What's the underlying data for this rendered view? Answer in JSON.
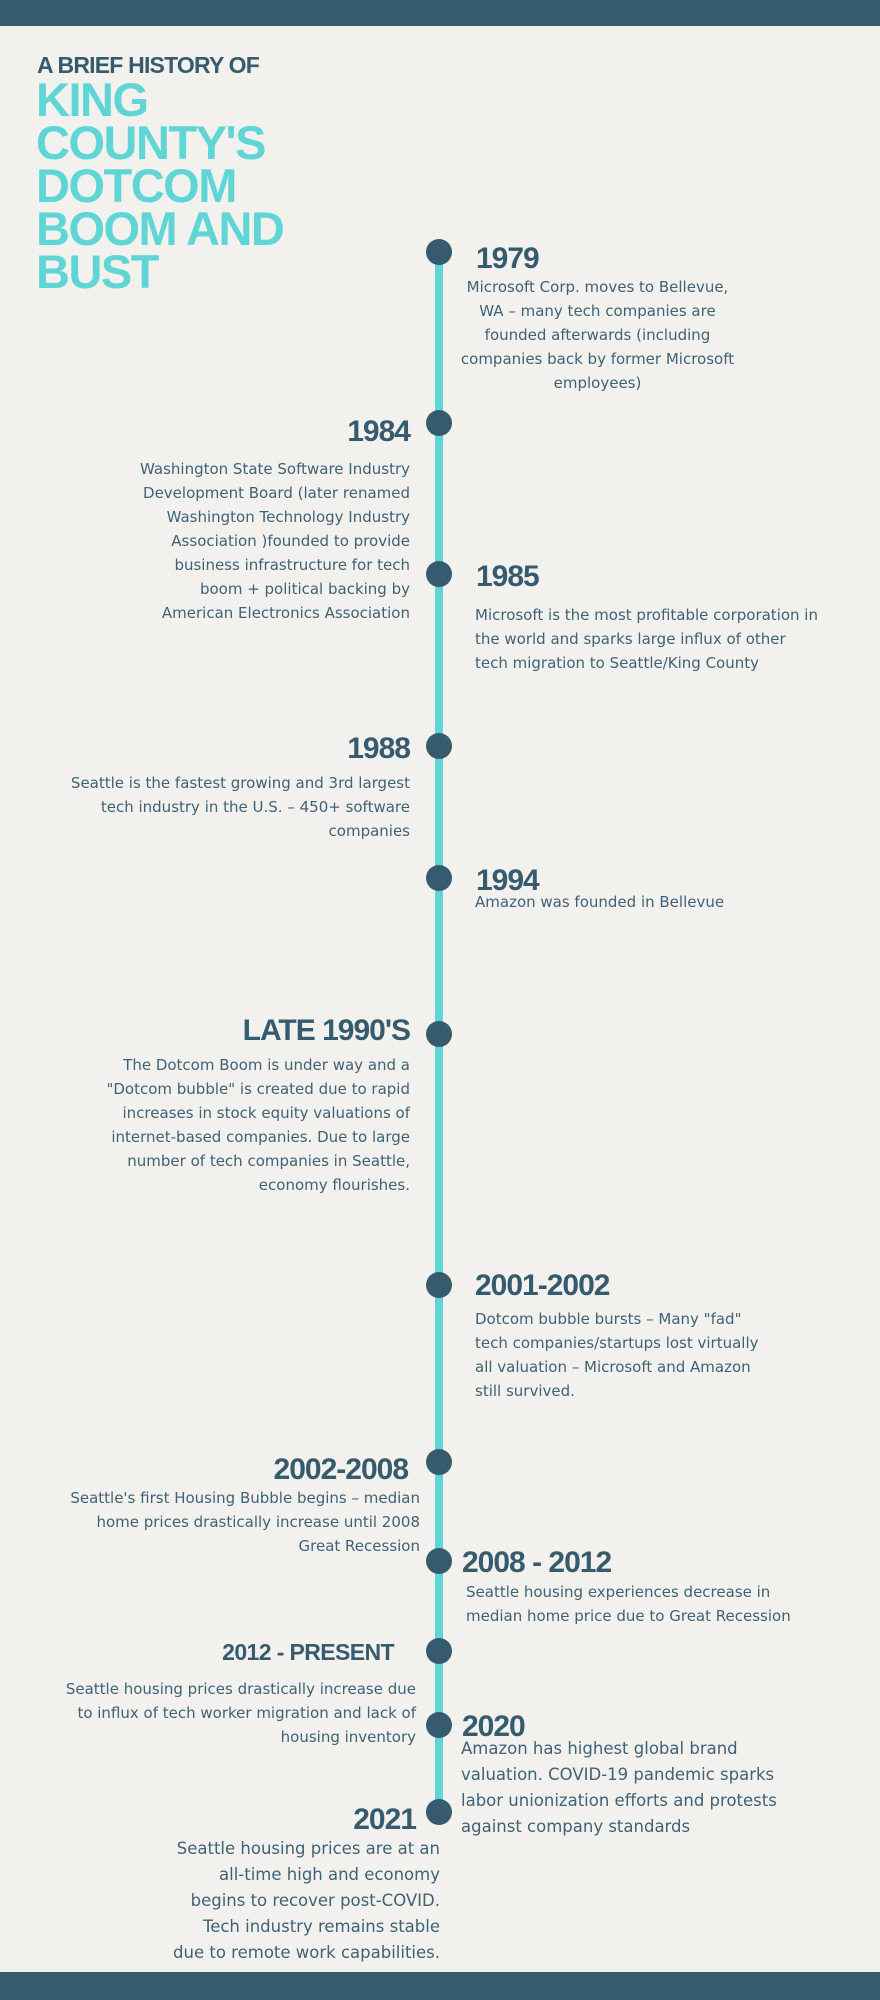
{
  "header": {
    "subtitle": "A BRIEF HISTORY OF",
    "title_lines": [
      "KING",
      "COUNTY'S",
      "DOTCOM",
      "BOOM AND",
      "BUST"
    ]
  },
  "events": [
    {
      "year": "1979",
      "text": "Microsoft Corp. moves to Bellevue, WA – many tech companies are founded afterwards (including companies back by former Microsoft employees)"
    },
    {
      "year": "1984",
      "text": "Washington State Software Industry Development Board (later renamed Washington Technology Industry Association )founded to provide business infrastructure for tech boom + political backing by American Electronics Association"
    },
    {
      "year": "1985",
      "text": "Microsoft is the most profitable corporation in the world and sparks large influx of other tech migration to Seattle/King County"
    },
    {
      "year": "1988",
      "text": "Seattle is the fastest growing and 3rd largest tech industry in the U.S. – 450+ software companies"
    },
    {
      "year": "1994",
      "text": "Amazon was founded in Bellevue"
    },
    {
      "year": "LATE 1990'S",
      "text": "The Dotcom Boom is under way and a \"Dotcom bubble\" is created due to rapid increases in stock equity valuations of internet-based companies. Due to large number of tech companies in Seattle, economy flourishes."
    },
    {
      "year": "2001-2002",
      "text": "Dotcom bubble bursts – Many \"fad\" tech companies/startups lost virtually all valuation – Microsoft and Amazon still survived."
    },
    {
      "year": "2002-2008",
      "text": "Seattle's first Housing Bubble begins – median home prices drastically increase until 2008 Great Recession"
    },
    {
      "year": "2008 - 2012",
      "text": "Seattle housing experiences decrease in median home price due to Great Recession"
    },
    {
      "year": "2012 - PRESENT",
      "text": "Seattle housing prices drastically increase due to influx of tech worker migration and lack of housing inventory"
    },
    {
      "year": "2020",
      "text": "Amazon has highest global brand valuation. COVID-19 pandemic sparks labor unionization efforts and protests against company standards"
    },
    {
      "year": "2021",
      "text": "Seattle housing prices are at an all-time high and economy begins to recover post-COVID. Tech industry remains stable due to remote work capabilities."
    }
  ]
}
